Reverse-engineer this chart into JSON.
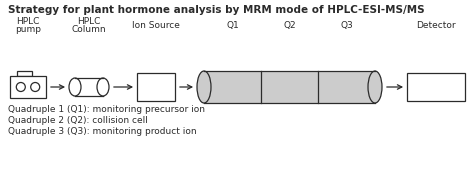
{
  "title": "Strategy for plant hormone analysis by MRM mode of HPLC-ESI-MS/MS",
  "bg_color": "#ffffff",
  "labels": {
    "pump_line1": "HPLC",
    "pump_line2": "pump",
    "column_line1": "HPLC",
    "column_line2": "Column",
    "ion_source": "Ion Source",
    "q1": "Q1",
    "q2": "Q2",
    "q3": "Q3",
    "detector": "Detector"
  },
  "annotations": [
    "Quadruple 1 (Q1): monitoring precursor ion",
    "Quadruple 2 (Q2): collision cell",
    "Quadruple 3 (Q3): monitoring product ion"
  ],
  "line_color": "#2b2b2b",
  "fill_color": "#cccccc",
  "title_fontsize": 7.5,
  "label_fontsize": 6.5,
  "annot_fontsize": 6.5
}
